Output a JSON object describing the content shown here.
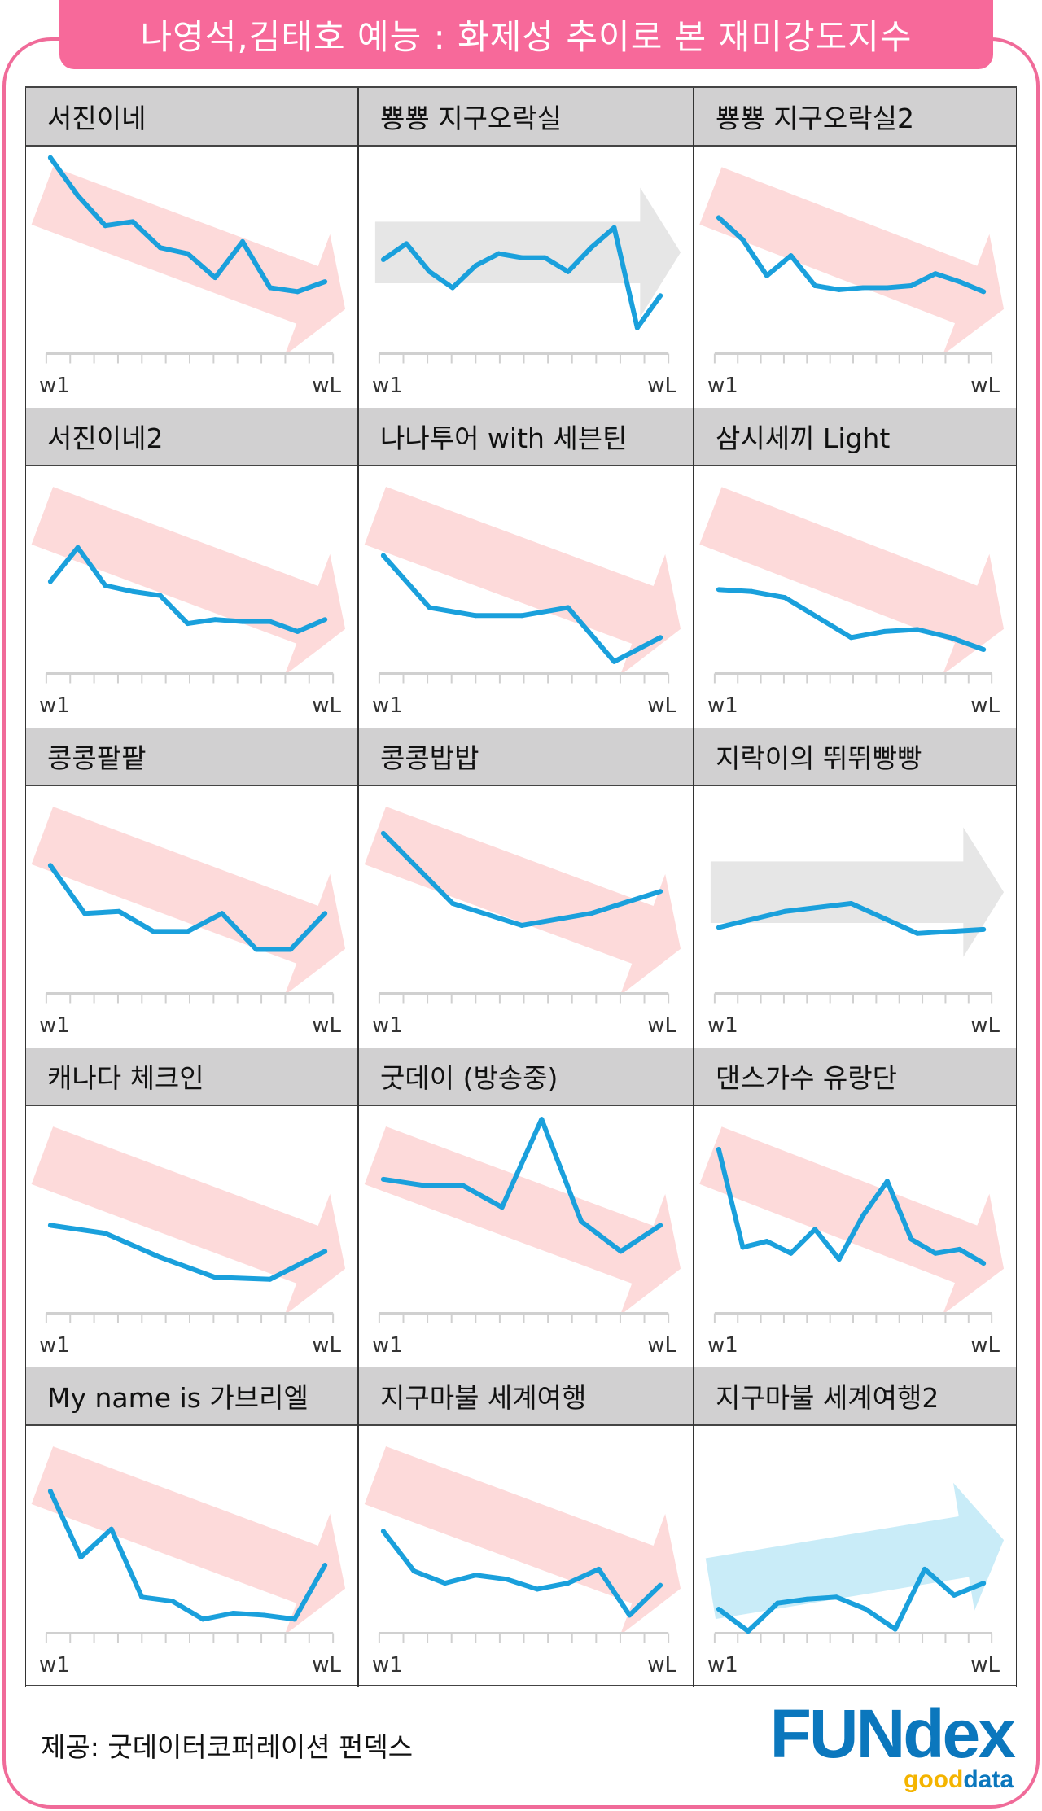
{
  "title": "나영석,김태호 예능 : 화제성 추이로 본 재미강도지수",
  "credit": "제공: 굿데이터코퍼레이션 펀덱스",
  "logo": {
    "main": "FUNdex",
    "sub_a": "good",
    "sub_b": "data"
  },
  "colors": {
    "line": "#1aa0dc",
    "down_arrow": "#fddada",
    "flat_arrow": "#e6e6e6",
    "up_arrow": "#c9ecf8",
    "title_bg": "#f7699a",
    "logo_blue": "#0b77bd",
    "logo_yellow": "#f4b400"
  },
  "chart_data": [
    {
      "type": "line",
      "title": "서진이네",
      "trend": "down",
      "x_labels": [
        "w1",
        "wL"
      ],
      "values": [
        98,
        79,
        64,
        66,
        53,
        50,
        38,
        56,
        33,
        31,
        36
      ]
    },
    {
      "type": "line",
      "title": "뿅뿅 지구오락실",
      "trend": "flat",
      "x_labels": [
        "w1",
        "wL"
      ],
      "values": [
        47,
        55,
        41,
        33,
        44,
        50,
        48,
        48,
        41,
        53,
        63,
        13,
        29
      ]
    },
    {
      "type": "line",
      "title": "뿅뿅 지구오락실2",
      "trend": "down",
      "x_labels": [
        "w1",
        "wL"
      ],
      "values": [
        68,
        57,
        39,
        49,
        34,
        32,
        33,
        33,
        34,
        40,
        36,
        31
      ]
    },
    {
      "type": "line",
      "title": "서진이네2",
      "trend": "down",
      "x_labels": [
        "w1",
        "wL"
      ],
      "values": [
        46,
        63,
        44,
        41,
        39,
        25,
        27,
        26,
        26,
        21,
        27
      ]
    },
    {
      "type": "line",
      "title": "나나투어 with 세븐틴",
      "trend": "down",
      "x_labels": [
        "w1",
        "wL"
      ],
      "values": [
        59,
        33,
        29,
        29,
        33,
        6,
        18
      ]
    },
    {
      "type": "line",
      "title": "삼시세끼 Light",
      "trend": "down",
      "x_labels": [
        "w1",
        "wL"
      ],
      "values": [
        42,
        41,
        38,
        28,
        18,
        21,
        22,
        18,
        12
      ]
    },
    {
      "type": "line",
      "title": "콩콩팥팥",
      "trend": "down",
      "x_labels": [
        "w1",
        "wL"
      ],
      "values": [
        64,
        40,
        41,
        31,
        31,
        40,
        22,
        22,
        40
      ]
    },
    {
      "type": "line",
      "title": "콩콩밥밥",
      "trend": "down",
      "x_labels": [
        "w1",
        "wL"
      ],
      "values": [
        80,
        45,
        34,
        40,
        51
      ]
    },
    {
      "type": "line",
      "title": "지락이의 뛰뛰빵빵",
      "trend": "flat",
      "x_labels": [
        "w1",
        "wL"
      ],
      "values": [
        33,
        41,
        45,
        30,
        32
      ]
    },
    {
      "type": "line",
      "title": "캐나다 체크인",
      "trend": "down",
      "x_labels": [
        "w1",
        "wL"
      ],
      "values": [
        44,
        40,
        28,
        18,
        17,
        31
      ]
    },
    {
      "type": "line",
      "title": "굿데이 (방송중)",
      "trend": "down",
      "x_labels": [
        "w1",
        "wL"
      ],
      "values": [
        67,
        64,
        64,
        53,
        97,
        46,
        31,
        44
      ]
    },
    {
      "type": "line",
      "title": "댄스가수 유랑단",
      "trend": "down",
      "x_labels": [
        "w1",
        "wL"
      ],
      "values": [
        82,
        33,
        36,
        30,
        42,
        27,
        49,
        66,
        37,
        30,
        32,
        25
      ]
    },
    {
      "type": "line",
      "title": "My name is 가브리엘",
      "trend": "down",
      "x_labels": [
        "w1",
        "wL"
      ],
      "values": [
        71,
        38,
        52,
        18,
        16,
        7,
        10,
        9,
        7,
        34
      ]
    },
    {
      "type": "line",
      "title": "지구마불 세계여행",
      "trend": "down",
      "x_labels": [
        "w1",
        "wL"
      ],
      "values": [
        51,
        31,
        25,
        29,
        27,
        22,
        25,
        32,
        9,
        24
      ]
    },
    {
      "type": "line",
      "title": "지구마불 세계여행2",
      "trend": "up",
      "x_labels": [
        "w1",
        "wL"
      ],
      "values": [
        12,
        1,
        15,
        17,
        18,
        12,
        2,
        32,
        19,
        25
      ]
    }
  ]
}
